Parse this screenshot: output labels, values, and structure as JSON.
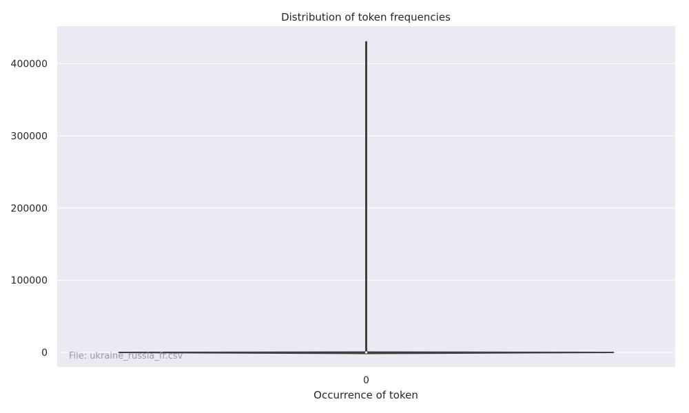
{
  "chart_data": {
    "type": "violin",
    "title": "Distribution of token frequencies",
    "xlabel": "Occurrence of token",
    "ylabel": "",
    "categories": [
      "0"
    ],
    "yticks": [
      0,
      100000,
      200000,
      300000,
      400000
    ],
    "ytick_labels": [
      "0",
      "100000",
      "200000",
      "300000",
      "400000"
    ],
    "ylim": [
      -20000,
      452000
    ],
    "grid": true,
    "series": [
      {
        "category": "0",
        "min": 0,
        "max": 430000,
        "median": 1,
        "density_peak_value": 500,
        "fill_color": "#4c72b0"
      }
    ],
    "annotation": "File: ukraine_russia_fr.csv",
    "colors": {
      "plot_background": "#eaeaf2",
      "grid": "#ffffff",
      "violin_fill": "#4c72b0",
      "violin_edge": "#3f3f3f"
    }
  }
}
